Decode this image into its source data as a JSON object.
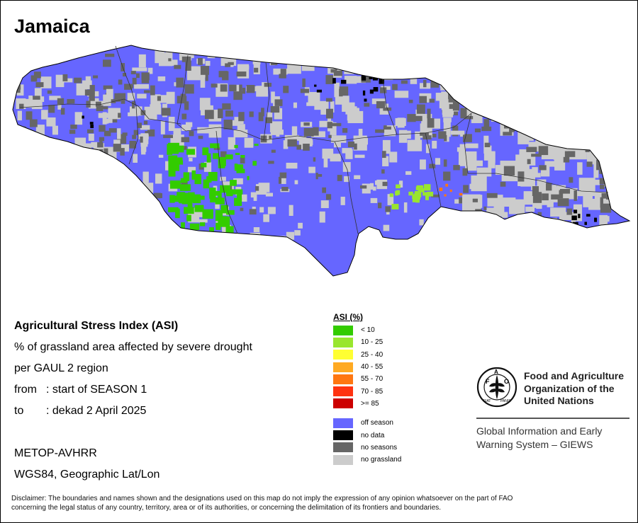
{
  "title": "Jamaica",
  "info": {
    "heading": "Agricultural Stress Index (ASI)",
    "line1": "% of grassland area affected by severe drought",
    "line2": "per GAUL 2 region",
    "from_label": "from",
    "from_value": ": start of SEASON 1",
    "to_label": "to",
    "to_value": ": dekad 2 April 2025",
    "sensor": "METOP-AVHRR",
    "projection": "WGS84, Geographic Lat/Lon"
  },
  "legend": {
    "title": "ASI (%)",
    "classes": [
      {
        "label": "< 10",
        "color": "#33cc00"
      },
      {
        "label": "10 - 25",
        "color": "#99e62e"
      },
      {
        "label": "25 - 40",
        "color": "#ffff33"
      },
      {
        "label": "40 - 55",
        "color": "#ffaa22"
      },
      {
        "label": "55 - 70",
        "color": "#ff7711"
      },
      {
        "label": "70 - 85",
        "color": "#ff3311"
      },
      {
        "label": ">= 85",
        "color": "#cc0000"
      }
    ],
    "extras": [
      {
        "label": "off season",
        "color": "#6666ff"
      },
      {
        "label": "no data",
        "color": "#000000"
      },
      {
        "label": "no seasons",
        "color": "#666666"
      },
      {
        "label": "no grassland",
        "color": "#cccccc"
      }
    ]
  },
  "fao": {
    "line1": "Food and Agriculture",
    "line2": "Organization of the",
    "line3": "United Nations",
    "logo_text": "FAO",
    "motto": "FIAT PANIS"
  },
  "giews": {
    "line1": "Global Information and Early",
    "line2": "Warning System – GIEWS"
  },
  "disclaimer": {
    "line1": "Disclaimer: The boundaries and names shown and the designations used on this map do not imply the expression of any opinion whatsoever on the part of FAO",
    "line2": "concerning the legal status of any country, territory, area or of its authorities, or concerning the delimitation of its frontiers and boundaries."
  }
}
